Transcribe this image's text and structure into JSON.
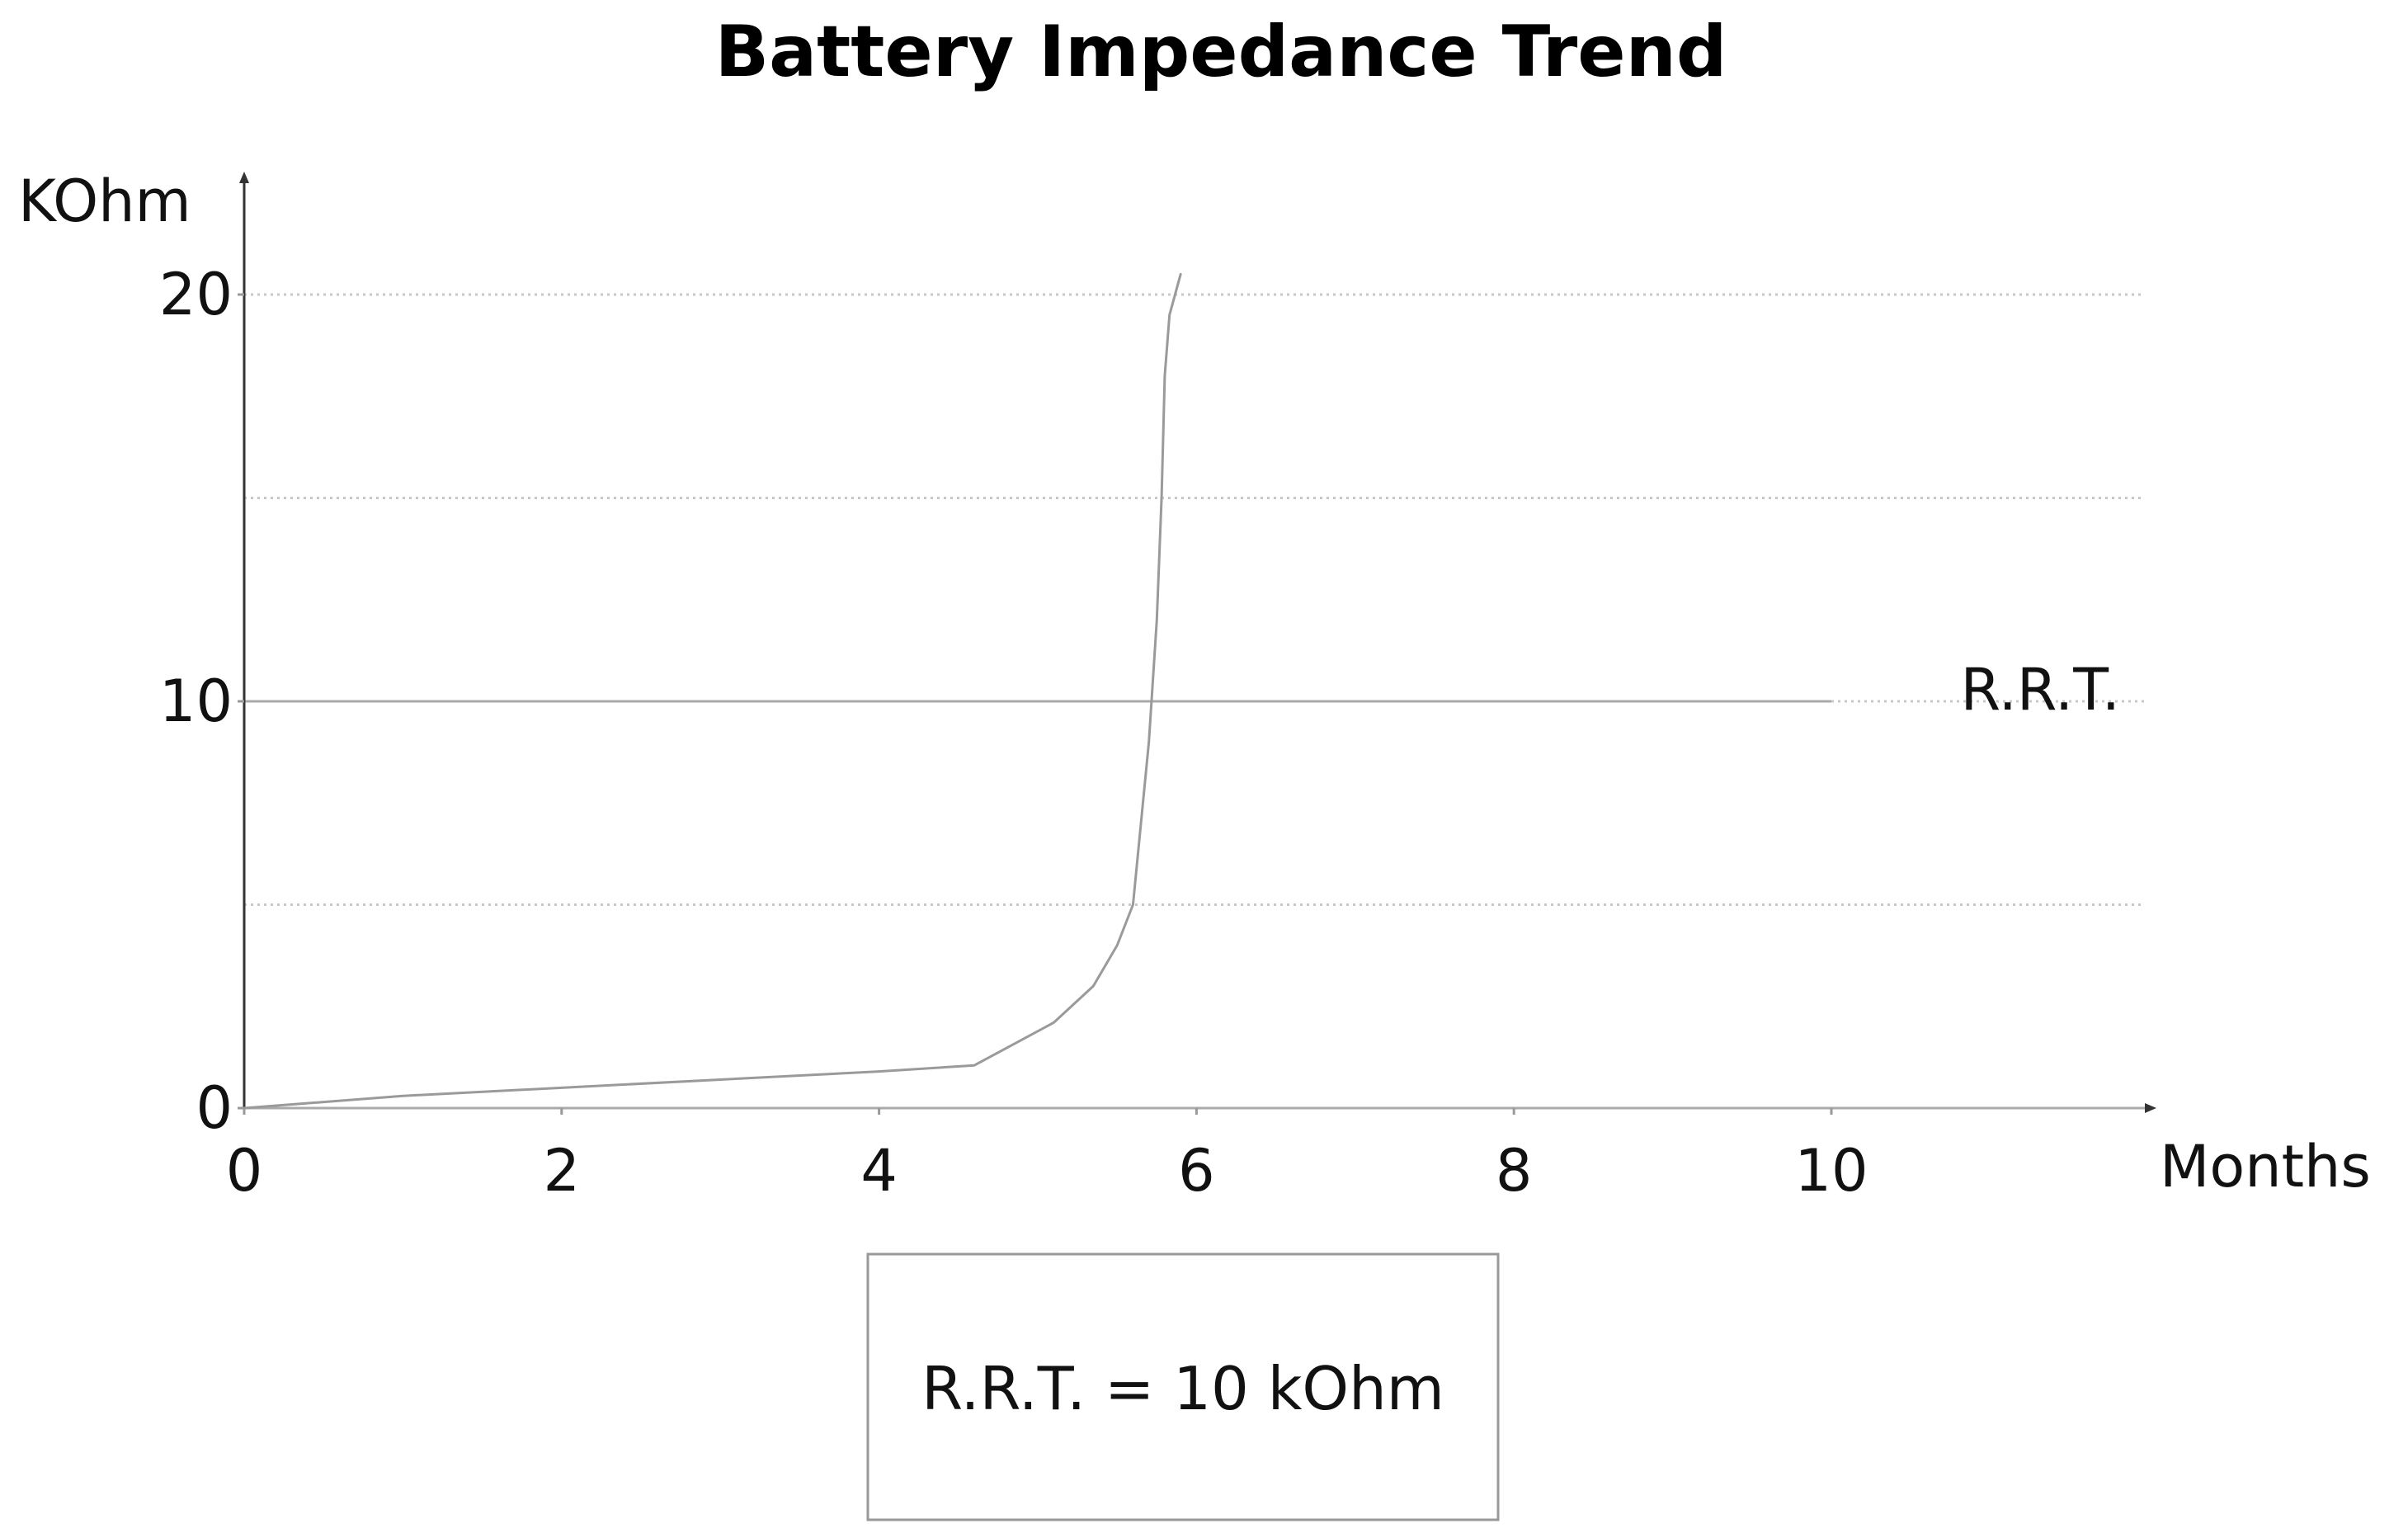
{
  "chart_data": {
    "type": "line",
    "title": "Battery Impedance Trend",
    "xlabel": "Months",
    "ylabel": "KOhm",
    "xlim": [
      0,
      12
    ],
    "ylim": [
      0,
      22
    ],
    "x_ticks": [
      0,
      2,
      4,
      6,
      8,
      10
    ],
    "y_ticks": [
      0,
      10,
      20
    ],
    "y_gridlines": [
      5,
      10,
      15,
      20
    ],
    "grid": true,
    "series": [
      {
        "name": "",
        "color": "#9a9a9a",
        "x": [
          0,
          1,
          2,
          3,
          4,
          4.6,
          5.1,
          5.35,
          5.5,
          5.6,
          5.65,
          5.7,
          5.75,
          5.78,
          5.8,
          5.83,
          5.9
        ],
        "y": [
          0,
          0.3,
          0.5,
          0.7,
          0.9,
          1.05,
          2.1,
          3.0,
          4.0,
          5.0,
          7.0,
          9.0,
          12.0,
          15.0,
          18.0,
          19.5,
          20.5
        ]
      }
    ],
    "reference_line": {
      "label": "R.R.T.",
      "value": 10,
      "color": "#aaaaaa"
    },
    "legend": {
      "text": "R.R.T. = 10 kOhm",
      "placement": "bottom-center"
    }
  }
}
